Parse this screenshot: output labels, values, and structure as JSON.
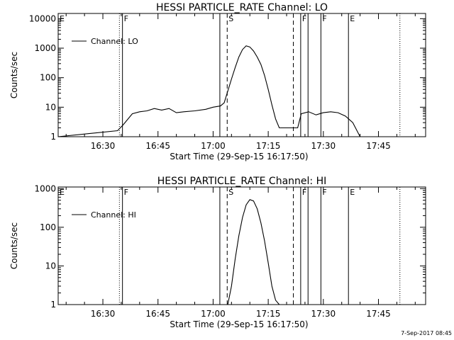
{
  "footer": {
    "timestamp": "7-Sep-2017 08:45"
  },
  "chart_data": [
    {
      "type": "line",
      "title": "HESSI PARTICLE_RATE Channel: LO",
      "xlabel": "Start Time (29-Sep-15 16:17:50)",
      "ylabel": "Counts/sec",
      "yscale": "log",
      "legend": {
        "label": "Channel: LO",
        "placement": "top-left"
      },
      "x_ticks": [
        "16:30",
        "16:45",
        "17:00",
        "17:15",
        "17:30",
        "17:45"
      ],
      "y_ticks": [
        "1",
        "10",
        "100",
        "1000",
        "10000"
      ],
      "xlim": [
        "16:17:50",
        "17:57:50"
      ],
      "ylim": [
        1,
        15000
      ],
      "markers": [
        {
          "time": "16:17:50",
          "label": "E",
          "style": "solid"
        },
        {
          "time": "16:34:30",
          "label": "",
          "style": "dotted"
        },
        {
          "time": "16:35:20",
          "label": "F",
          "style": "solid"
        },
        {
          "time": "17:01:50",
          "label": "",
          "style": "solid"
        },
        {
          "time": "17:03:50",
          "label": "S",
          "style": "dashed"
        },
        {
          "time": "17:21:50",
          "label": "",
          "style": "dashed"
        },
        {
          "time": "17:23:50",
          "label": "F",
          "style": "solid"
        },
        {
          "time": "17:25:50",
          "label": "",
          "style": "solid"
        },
        {
          "time": "17:29:20",
          "label": "F",
          "style": "solid"
        },
        {
          "time": "17:36:50",
          "label": "E",
          "style": "solid"
        },
        {
          "time": "17:50:50",
          "label": "",
          "style": "dotted"
        }
      ],
      "series": [
        {
          "name": "Channel: LO",
          "x": [
            "16:17:50",
            "16:34:00",
            "16:35:30",
            "16:38:00",
            "16:40:00",
            "16:42:00",
            "16:44:00",
            "16:46:00",
            "16:48:00",
            "16:50:00",
            "16:52:00",
            "16:55:00",
            "16:58:00",
            "17:00:00",
            "17:02:00",
            "17:03:00",
            "17:04:00",
            "17:05:00",
            "17:06:00",
            "17:07:00",
            "17:08:00",
            "17:09:00",
            "17:10:00",
            "17:11:00",
            "17:12:00",
            "17:13:00",
            "17:14:00",
            "17:15:00",
            "17:16:00",
            "17:17:00",
            "17:18:00",
            "17:19:00",
            "17:21:00",
            "17:23:00",
            "17:24:00",
            "17:26:00",
            "17:28:00",
            "17:30:00",
            "17:32:00",
            "17:34:00",
            "17:36:00",
            "17:38:00",
            "17:40:00",
            "17:50:00"
          ],
          "values": [
            1,
            1.6,
            2.5,
            6,
            7,
            7.5,
            9,
            8,
            9,
            6.5,
            7,
            7.5,
            8.5,
            10,
            11,
            14,
            35,
            90,
            220,
            500,
            900,
            1200,
            1100,
            800,
            500,
            280,
            120,
            40,
            12,
            4,
            2,
            2,
            2,
            2,
            6,
            7,
            5.5,
            6.5,
            7,
            6.5,
            5,
            3,
            1,
            1
          ]
        }
      ]
    },
    {
      "type": "line",
      "title": "HESSI PARTICLE_RATE Channel: HI",
      "xlabel": "Start Time (29-Sep-15 16:17:50)",
      "ylabel": "Counts/sec",
      "yscale": "log",
      "legend": {
        "label": "Channel: HI",
        "placement": "top-left"
      },
      "x_ticks": [
        "16:30",
        "16:45",
        "17:00",
        "17:15",
        "17:30",
        "17:45"
      ],
      "y_ticks": [
        "1",
        "10",
        "100",
        "1000"
      ],
      "xlim": [
        "16:17:50",
        "17:57:50"
      ],
      "ylim": [
        1,
        1100
      ],
      "markers": [
        {
          "time": "16:17:50",
          "label": "E",
          "style": "solid"
        },
        {
          "time": "16:34:30",
          "label": "",
          "style": "dotted"
        },
        {
          "time": "16:35:20",
          "label": "F",
          "style": "solid"
        },
        {
          "time": "17:01:50",
          "label": "",
          "style": "solid"
        },
        {
          "time": "17:03:50",
          "label": "S",
          "style": "dashed"
        },
        {
          "time": "17:21:50",
          "label": "",
          "style": "dashed"
        },
        {
          "time": "17:23:50",
          "label": "F",
          "style": "solid"
        },
        {
          "time": "17:25:50",
          "label": "",
          "style": "solid"
        },
        {
          "time": "17:29:20",
          "label": "F",
          "style": "solid"
        },
        {
          "time": "17:36:50",
          "label": "E",
          "style": "solid"
        },
        {
          "time": "17:50:50",
          "label": "",
          "style": "dotted"
        }
      ],
      "series": [
        {
          "name": "Channel: HI",
          "x": [
            "17:04:00",
            "17:05:00",
            "17:06:00",
            "17:07:00",
            "17:08:00",
            "17:09:00",
            "17:10:00",
            "17:11:00",
            "17:12:00",
            "17:13:00",
            "17:14:00",
            "17:15:00",
            "17:16:00",
            "17:17:00",
            "17:18:00"
          ],
          "values": [
            1,
            3,
            15,
            60,
            180,
            380,
            520,
            480,
            300,
            130,
            45,
            12,
            3,
            1.3,
            1
          ]
        }
      ]
    }
  ]
}
